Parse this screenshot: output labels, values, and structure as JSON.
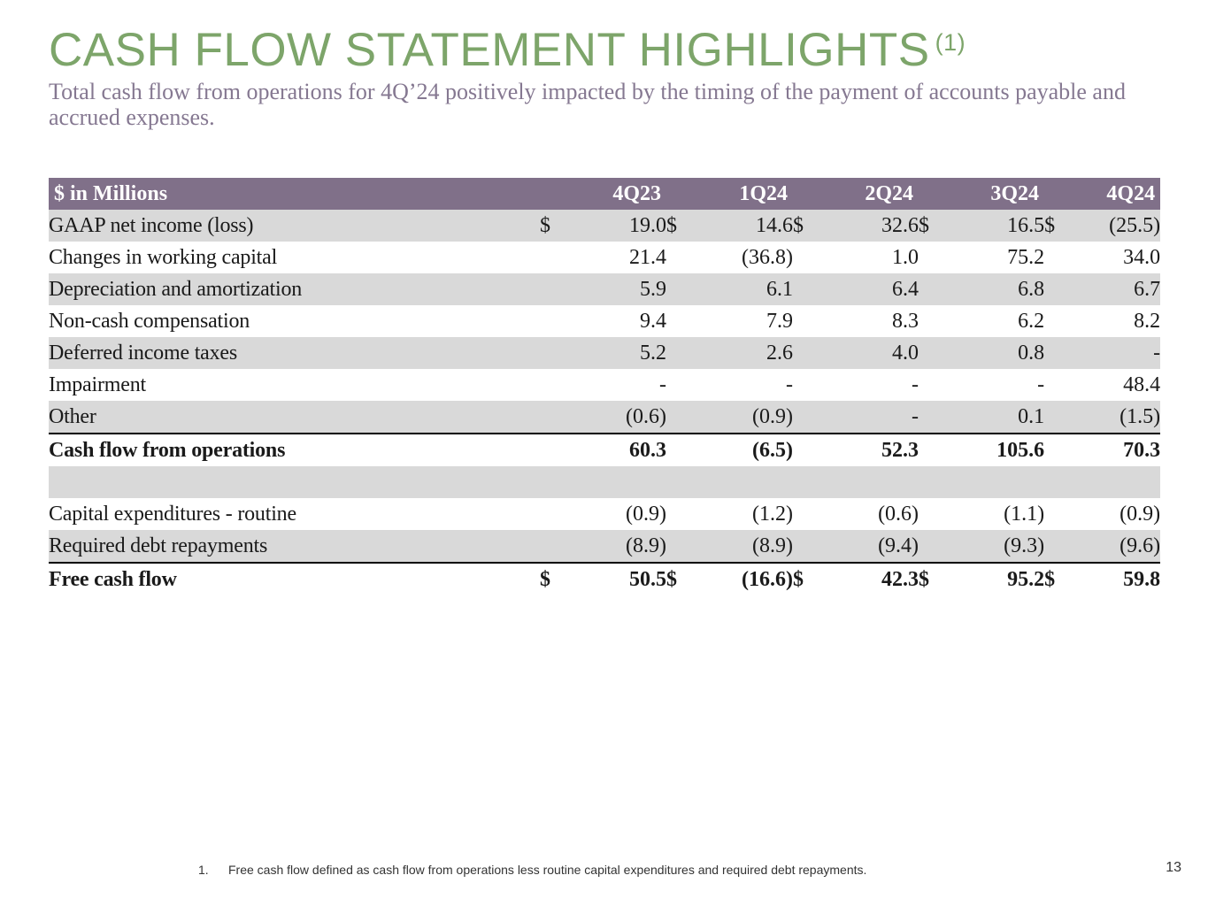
{
  "slide": {
    "title": "CASH FLOW STATEMENT HIGHLIGHTS",
    "title_superscript": "(1)",
    "subtitle": "Total cash flow from operations for 4Q’24 positively impacted by the timing of the payment of accounts payable and accrued expenses.",
    "page_number": "13",
    "colors": {
      "title": "#7da56a",
      "subtitle": "#857891",
      "header_bg": "#807089",
      "row_shade": "#d9d9d9"
    }
  },
  "table": {
    "header": {
      "label": "$ in Millions",
      "quarters": [
        "4Q23",
        "1Q24",
        "2Q24",
        "3Q24",
        "4Q24"
      ]
    },
    "rows": [
      {
        "label": "GAAP net income (loss)",
        "currency": [
          "$",
          "$",
          "$",
          "$",
          "$"
        ],
        "values": [
          "19.0",
          "14.6",
          "32.6",
          "16.5",
          "(25.5)"
        ]
      },
      {
        "label": "Changes in working capital",
        "values": [
          "21.4",
          "(36.8)",
          "1.0",
          "75.2",
          "34.0"
        ]
      },
      {
        "label": "Depreciation and amortization",
        "values": [
          "5.9",
          "6.1",
          "6.4",
          "6.8",
          "6.7"
        ]
      },
      {
        "label": "Non-cash compensation",
        "values": [
          "9.4",
          "7.9",
          "8.3",
          "6.2",
          "8.2"
        ]
      },
      {
        "label": "Deferred income taxes",
        "values": [
          "5.2",
          "2.6",
          "4.0",
          "0.8",
          "-"
        ]
      },
      {
        "label": "Impairment",
        "values": [
          "-",
          "-",
          "-",
          "-",
          "48.4"
        ]
      },
      {
        "label": "Other",
        "values": [
          "(0.6)",
          "(0.9)",
          "-",
          "0.1",
          "(1.5)"
        ]
      },
      {
        "label": "Cash flow from operations",
        "values": [
          "60.3",
          "(6.5)",
          "52.3",
          "105.6",
          "70.3"
        ]
      },
      {
        "label": "Capital expenditures - routine",
        "values": [
          "(0.9)",
          "(1.2)",
          "(0.6)",
          "(1.1)",
          "(0.9)"
        ]
      },
      {
        "label": "Required debt repayments",
        "values": [
          "(8.9)",
          "(8.9)",
          "(9.4)",
          "(9.3)",
          "(9.6)"
        ]
      },
      {
        "label": "Free cash flow",
        "currency": [
          "$",
          "$",
          "$",
          "$",
          "$"
        ],
        "values": [
          "50.5",
          "(16.6)",
          "42.3",
          "95.2",
          "59.8"
        ]
      }
    ]
  },
  "footnote": {
    "number": "1.",
    "text": "Free cash flow defined as cash flow from operations less routine capital expenditures and required debt repayments."
  }
}
